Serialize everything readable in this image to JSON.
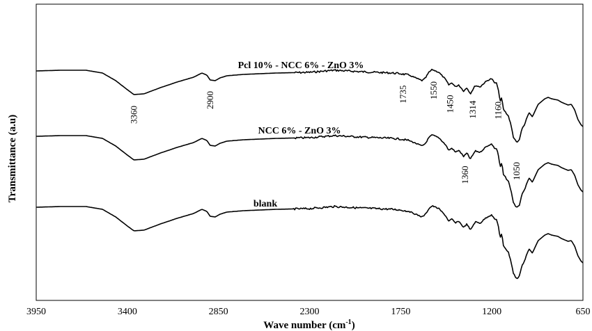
{
  "chart_data": {
    "type": "line",
    "title": "",
    "xlabel": "Wave number (cm-1)",
    "xlabel_main": "Wave number (cm",
    "xlabel_sup": "-1",
    "xlabel_close": ")",
    "ylabel": "Transmittance (a.u)",
    "x_reversed": true,
    "xlim": [
      3950,
      650
    ],
    "xticks": [
      3950,
      3400,
      2850,
      2300,
      1750,
      1200,
      650
    ],
    "xtick_labels": [
      "3950",
      "3400",
      "2850",
      "2300",
      "1750",
      "1200",
      "650"
    ],
    "y_ticks_shown": false,
    "grid": false,
    "series": [
      {
        "name": "Pcl 10% - NCC 6% - ZnO 3%",
        "peak_labels": [
          "3360",
          "2900",
          "1735",
          "1550",
          "1450",
          "1314",
          "1160",
          "1050"
        ],
        "peak_positions": [
          3360,
          2900,
          1735,
          1550,
          1450,
          1314,
          1160,
          1050
        ]
      },
      {
        "name": "NCC 6% - ZnO 3%",
        "peak_labels": [
          "1360"
        ],
        "peak_positions": [
          1360
        ]
      },
      {
        "name": "blank",
        "peak_labels": [],
        "peak_positions": []
      }
    ]
  }
}
